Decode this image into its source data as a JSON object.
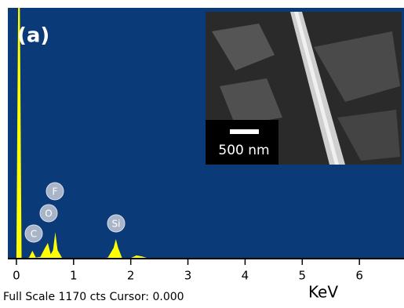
{
  "chart_data": {
    "type": "area",
    "panel_label": "(a)",
    "inset_scale_label": "500 nm",
    "footer": "Full Scale 1170 cts Cursor: 0.000",
    "x_label": "KeV",
    "annotations": [
      "C",
      "O",
      "F",
      "Si"
    ],
    "x": [
      -0.1,
      0,
      0.03,
      0.06,
      0.09,
      0.15,
      0.22,
      0.28,
      0.34,
      0.42,
      0.5,
      0.55,
      0.6,
      0.64,
      0.68,
      0.72,
      0.8,
      1.0,
      1.5,
      1.6,
      1.7,
      1.74,
      1.78,
      1.85,
      2.0,
      2.1,
      2.2,
      2.3,
      3.0,
      6.7
    ],
    "values": [
      0,
      0,
      1170,
      1170,
      0,
      2,
      5,
      37,
      5,
      8,
      50,
      73,
      20,
      40,
      124,
      40,
      3,
      2,
      2,
      5,
      50,
      91,
      50,
      3,
      3,
      15,
      10,
      2,
      2,
      0
    ],
    "color": "#ffff00",
    "background": "#0b3a78",
    "xlim": [
      -0.15,
      6.78
    ],
    "ylim": [
      0,
      1170
    ],
    "xticks": [
      0,
      1,
      2,
      3,
      4,
      5,
      6
    ]
  }
}
